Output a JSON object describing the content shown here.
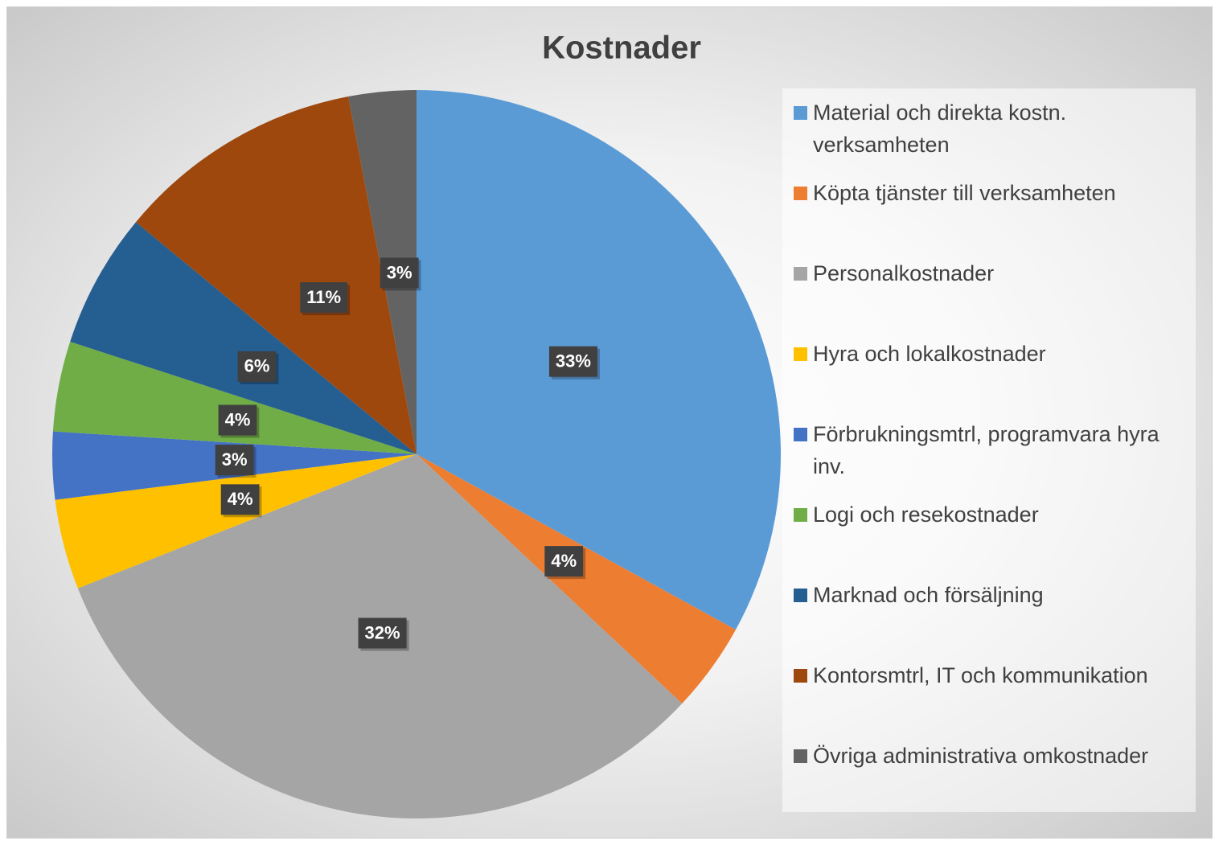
{
  "chart_data": {
    "type": "pie",
    "title": "Kostnader",
    "categories": [
      "Material och direkta kostn. verksamheten",
      "Köpta tjänster till verksamheten",
      "Personalkostnader",
      "Hyra och lokalkostnader",
      "Förbrukningsmtrl, programvara hyra inv.",
      "Logi och resekostnader",
      "Marknad och försäljning",
      "Kontorsmtrl, IT och kommunikation",
      "Övriga administrativa omkostnader"
    ],
    "values": [
      33,
      4,
      32,
      4,
      3,
      4,
      6,
      11,
      3
    ],
    "value_labels": [
      "33%",
      "4%",
      "32%",
      "4%",
      "3%",
      "4%",
      "6%",
      "11%",
      "3%"
    ],
    "colors": [
      "#5b9bd5",
      "#ed7d31",
      "#a5a5a5",
      "#ffc000",
      "#4472c4",
      "#70ad47",
      "#255e91",
      "#9e480e",
      "#636363"
    ],
    "legend": "right"
  }
}
